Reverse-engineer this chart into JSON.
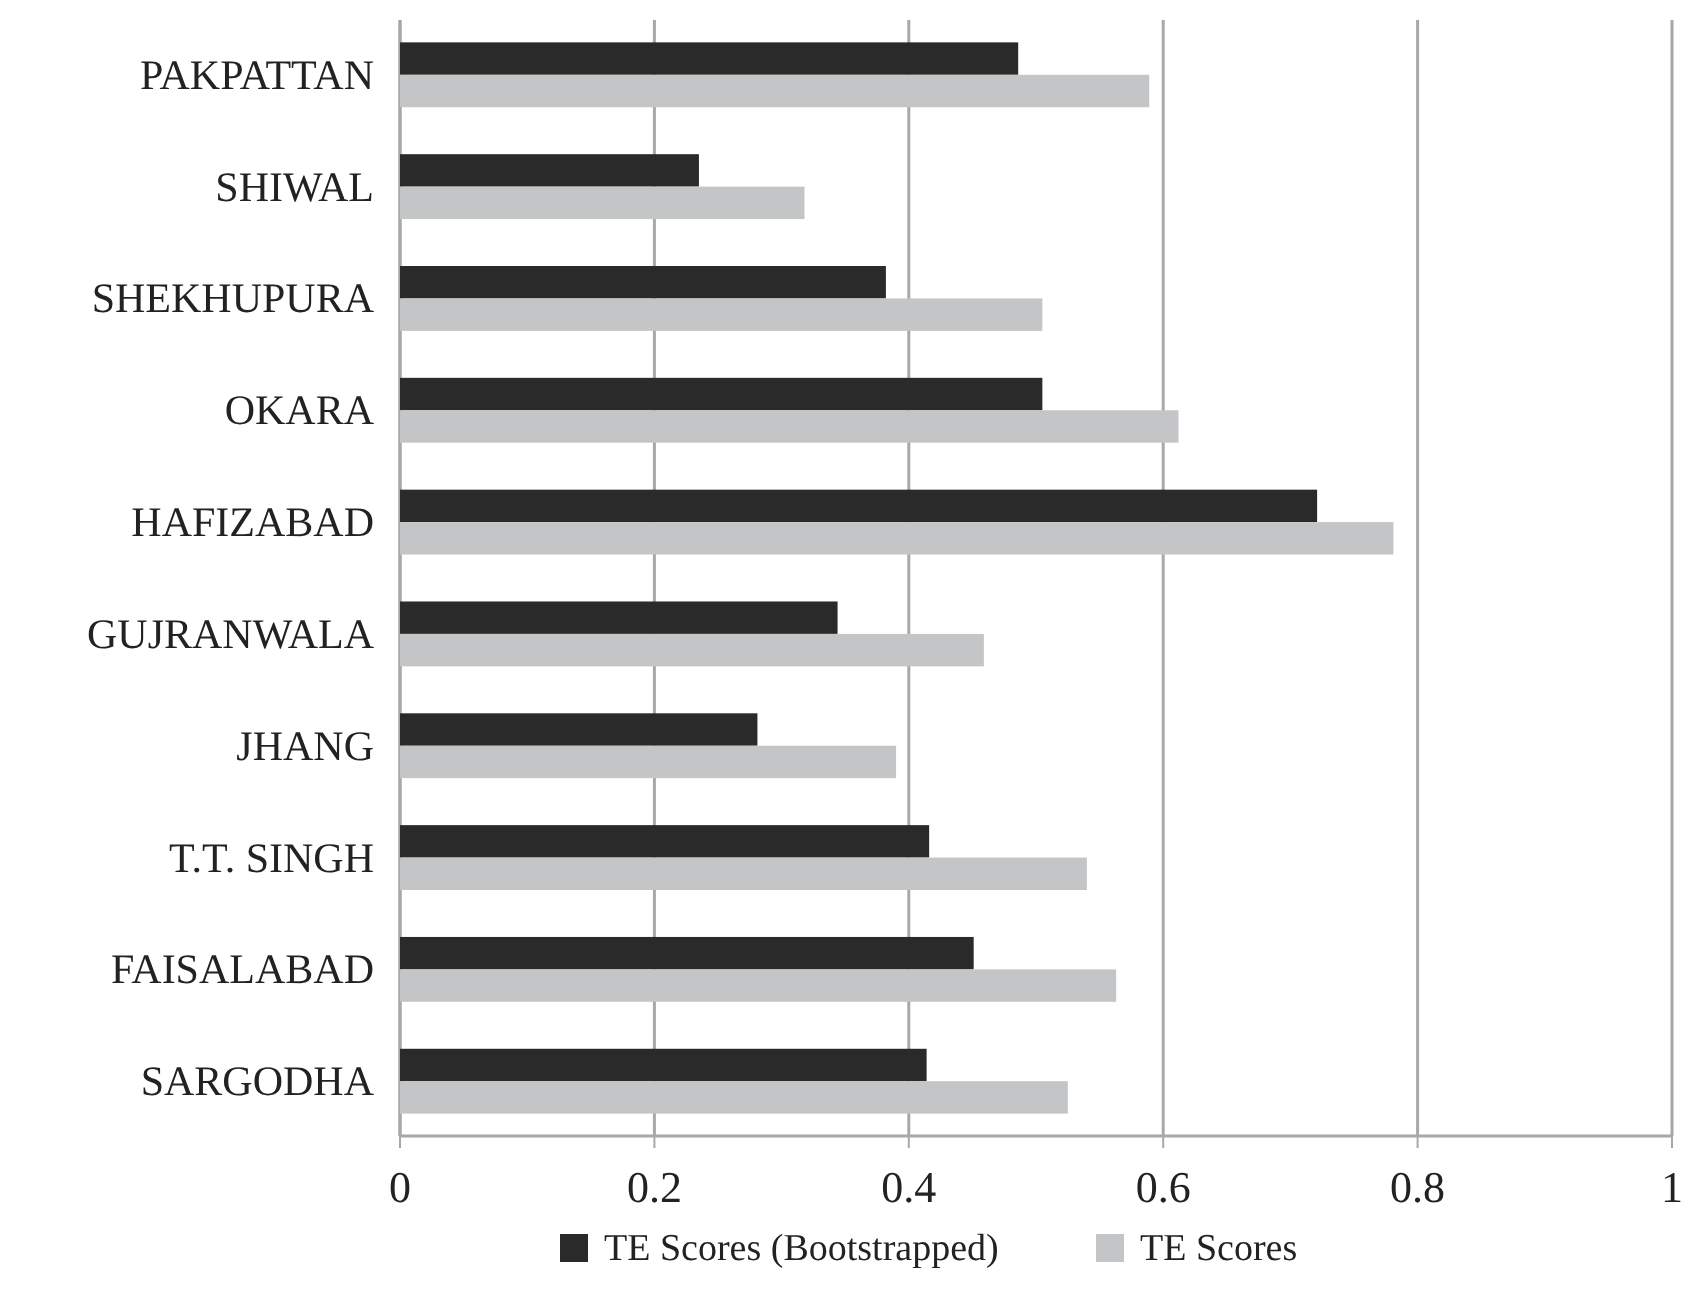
{
  "chart_data": {
    "type": "bar",
    "orientation": "horizontal",
    "categories": [
      "PAKPATTAN",
      "SHIWAL",
      "SHEKHUPURA",
      "OKARA",
      "HAFIZABAD",
      "GUJRANWALA",
      "JHANG",
      "T.T. SINGH",
      "FAISALABAD",
      "SARGODHA"
    ],
    "series": [
      {
        "name": "TE Scores (Bootstrapped)",
        "color": "#2a2a2a",
        "values": [
          0.486,
          0.235,
          0.382,
          0.505,
          0.721,
          0.344,
          0.281,
          0.416,
          0.451,
          0.414
        ]
      },
      {
        "name": "TE Scores",
        "color": "#c4c5c7",
        "values": [
          0.589,
          0.318,
          0.505,
          0.612,
          0.781,
          0.459,
          0.39,
          0.54,
          0.563,
          0.525
        ]
      }
    ],
    "xlim": [
      0,
      1
    ],
    "xticks": [
      0,
      0.2,
      0.4,
      0.6,
      0.8,
      1
    ],
    "grid": "x",
    "legend": "bottom"
  }
}
